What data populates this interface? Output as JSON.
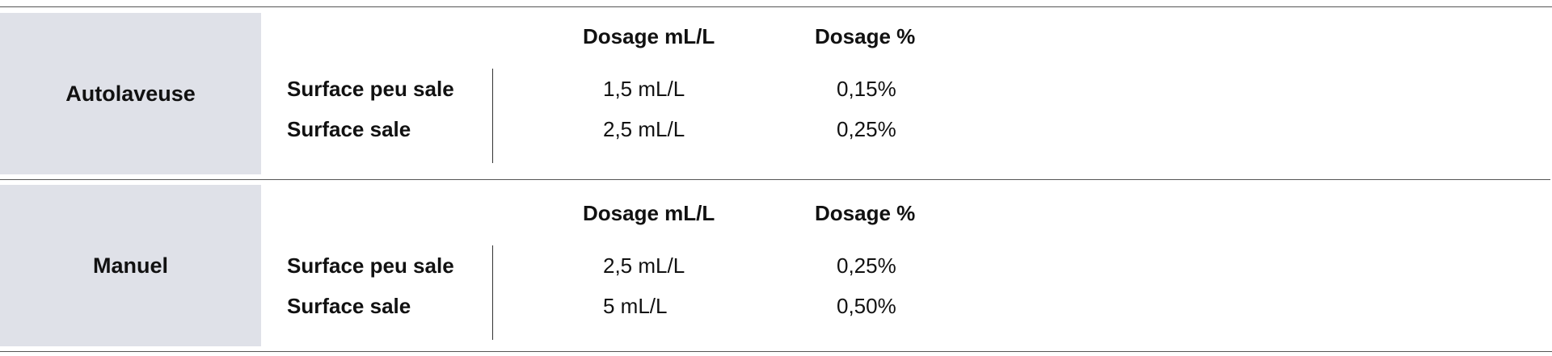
{
  "sections": [
    {
      "title": "Autolaveuse",
      "headers": [
        "Dosage mL/L",
        "Dosage %"
      ],
      "rows": [
        [
          "Surface peu sale",
          "1,5 mL/L",
          "0,15%"
        ],
        [
          "Surface sale",
          "2,5 mL/L",
          "0,25%"
        ]
      ]
    },
    {
      "title": "Manuel",
      "headers": [
        "Dosage mL/L",
        "Dosage %"
      ],
      "rows": [
        [
          "Surface peu sale",
          "2,5 mL/L",
          "0,25%"
        ],
        [
          "Surface sale",
          "5 mL/L",
          "0,50%"
        ]
      ]
    }
  ]
}
